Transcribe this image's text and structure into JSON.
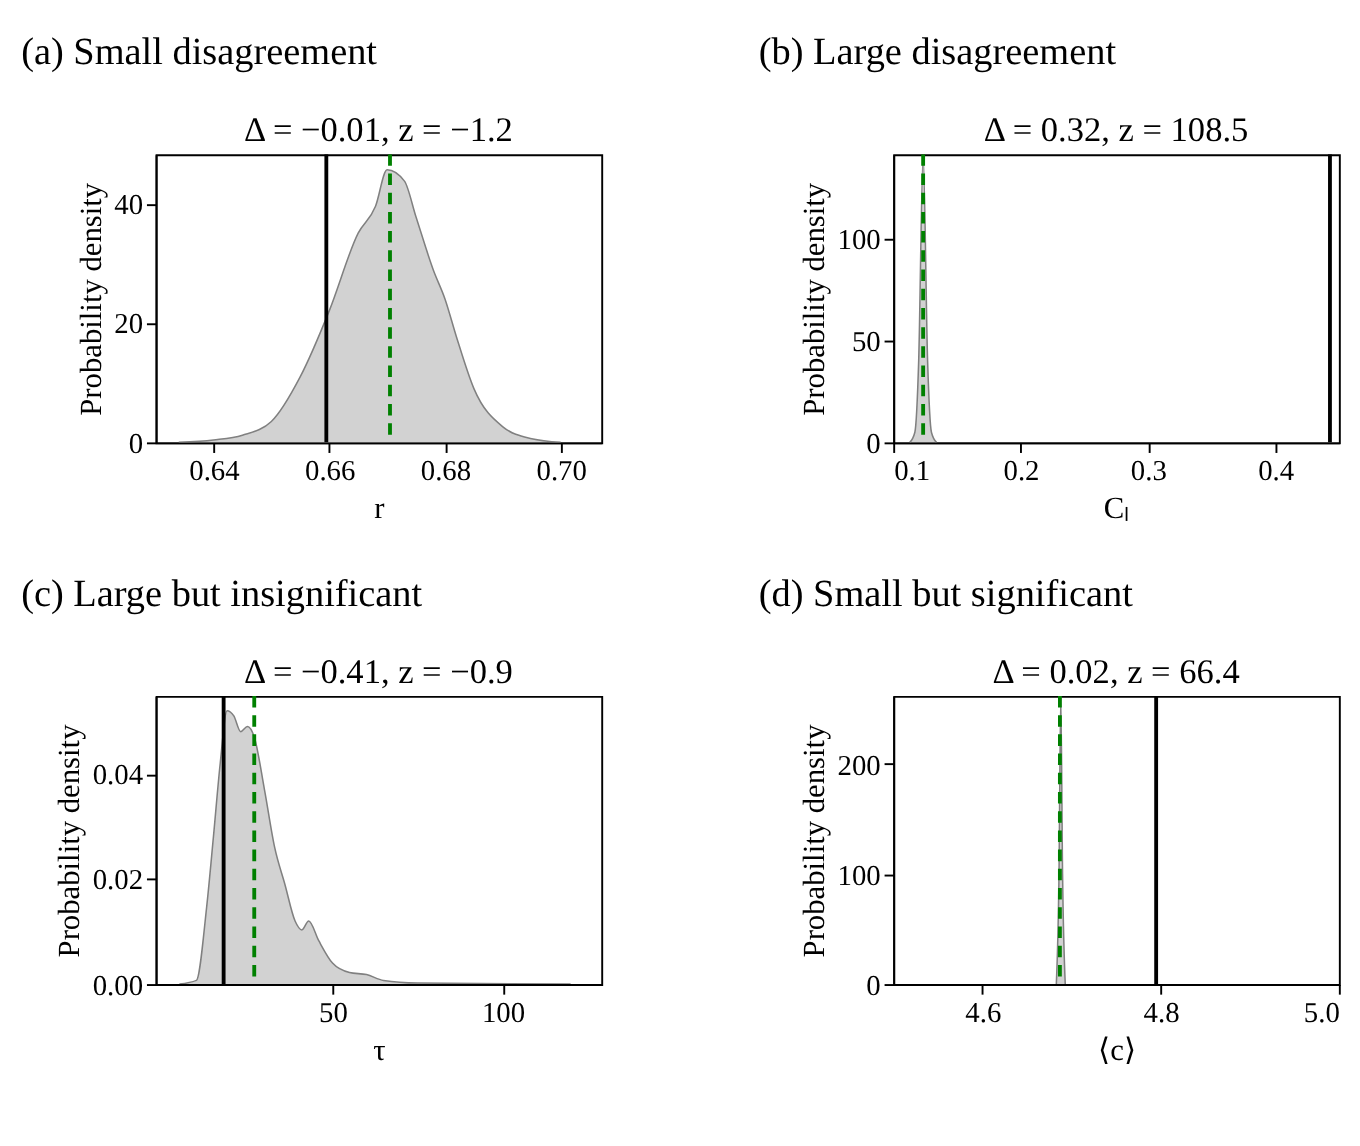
{
  "chart_data": [
    {
      "type": "area",
      "title": "(a) Small disagreement",
      "subtitle": "Δ = −0.01, z = −1.2",
      "xlabel": "r",
      "ylabel": "Probability density",
      "x": [
        0.634,
        0.64,
        0.645,
        0.65,
        0.655,
        0.66,
        0.665,
        0.668,
        0.67,
        0.673,
        0.675,
        0.678,
        0.68,
        0.682,
        0.685,
        0.69,
        0.695,
        0.7
      ],
      "series": [
        {
          "color": "#bfbfbf",
          "values": [
            0,
            0.4,
            1.2,
            3.5,
            11,
            22,
            35,
            39.5,
            45.6,
            43.7,
            37.7,
            28.8,
            24,
            17.6,
            9,
            2.6,
            0.6,
            0
          ]
        }
      ],
      "xlim": [
        0.63,
        0.707
      ],
      "ylim": [
        0,
        48.2
      ],
      "xticks": [
        0.64,
        0.66,
        0.68,
        {
          "value": 0.7,
          "label": "0.70"
        }
      ],
      "yticks": [
        0,
        20,
        40
      ],
      "ref_lines": [
        {
          "axis": "x",
          "value": 0.6595,
          "color": "#000000",
          "line_style": "solid"
        },
        {
          "axis": "x",
          "value": 0.6705,
          "color": "#008000",
          "line_style": "dashed"
        }
      ],
      "grid": false
    },
    {
      "type": "area",
      "title": "(b) Large disagreement",
      "subtitle": "Δ = 0.32, z = 108.5",
      "xlabel": "Cₗ",
      "ylabel": "Probability density",
      "x": [
        0.113,
        0.117,
        0.12,
        0.1235,
        0.127,
        0.13,
        0.134
      ],
      "series": [
        {
          "color": "#bfbfbf",
          "values": [
            0,
            5,
            40,
            141,
            40,
            5,
            0
          ]
        }
      ],
      "xlim": [
        0.1,
        0.45
      ],
      "ylim": [
        0,
        141.4
      ],
      "xticks": [
        0.1,
        0.2,
        0.3,
        0.4
      ],
      "yticks": [
        0,
        50,
        100
      ],
      "ref_lines": [
        {
          "axis": "x",
          "value": 0.443,
          "color": "#000000",
          "line_style": "solid"
        },
        {
          "axis": "x",
          "value": 0.1235,
          "color": "#008000",
          "line_style": "dashed"
        }
      ],
      "grid": false
    },
    {
      "type": "area",
      "title": "(c) Large but insignificant",
      "subtitle": "Δ = −0.41, z = −0.9",
      "xlabel": "τ",
      "ylabel": "Probability density",
      "x": [
        5,
        10,
        13,
        15,
        17,
        19,
        21,
        23,
        25,
        27,
        30,
        33,
        36,
        39,
        41,
        43,
        46,
        50,
        55,
        60,
        65,
        75,
        120
      ],
      "series": [
        {
          "color": "#bfbfbf",
          "values": [
            0,
            0.0007,
            0.0146,
            0.028,
            0.042,
            0.052,
            0.051,
            0.048,
            0.049,
            0.047,
            0.037,
            0.026,
            0.019,
            0.012,
            0.0103,
            0.012,
            0.0082,
            0.004,
            0.0022,
            0.0018,
            0.0007,
            0.0002,
            0
          ]
        }
      ],
      "xlim": [
        -2,
        129
      ],
      "ylim": [
        0,
        0.0548
      ],
      "xticks": [
        50,
        100
      ],
      "yticks": [
        {
          "value": 0,
          "label": "0.00"
        },
        {
          "value": 0.02,
          "label": "0.02"
        },
        {
          "value": 0.04,
          "label": "0.04"
        }
      ],
      "ref_lines": [
        {
          "axis": "x",
          "value": 18,
          "color": "#000000",
          "line_style": "solid"
        },
        {
          "axis": "x",
          "value": 27,
          "color": "#008000",
          "line_style": "dashed"
        }
      ],
      "grid": false
    },
    {
      "type": "area",
      "title": "(d) Small but significant",
      "subtitle": "Δ = 0.02, z = 66.4",
      "xlabel": "⟨c⟩",
      "ylabel": "Probability density",
      "x": [
        4.683,
        4.686,
        4.688,
        4.69,
        4.693
      ],
      "series": [
        {
          "color": "#bfbfbf",
          "values": [
            0,
            100,
            262,
            100,
            0
          ]
        }
      ],
      "xlim": [
        4.5,
        5.0
      ],
      "ylim": [
        0,
        262
      ],
      "xticks": [
        4.6,
        4.8,
        {
          "value": 5.0,
          "label": "5.0"
        }
      ],
      "yticks": [
        0,
        100,
        200
      ],
      "ref_lines": [
        {
          "axis": "x",
          "value": 4.795,
          "color": "#000000",
          "line_style": "solid"
        },
        {
          "axis": "x",
          "value": 4.687,
          "color": "#008000",
          "line_style": "dashed"
        }
      ],
      "grid": false
    }
  ]
}
